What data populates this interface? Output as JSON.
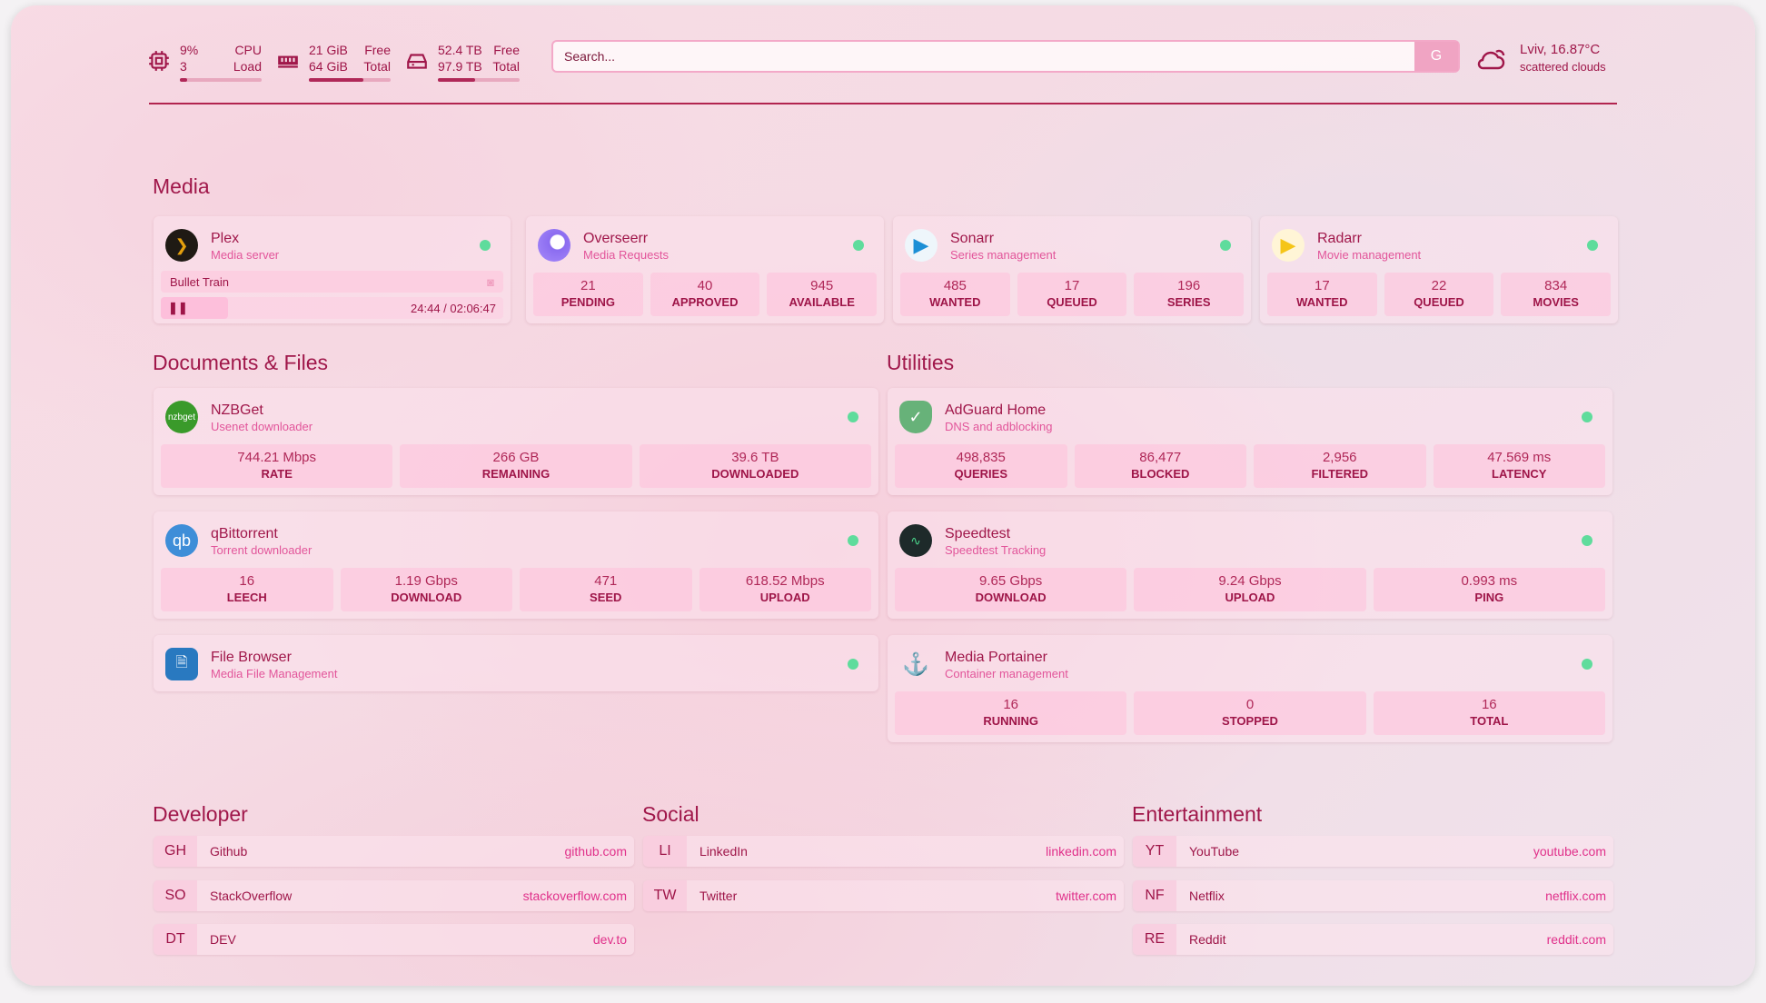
{
  "resources": {
    "cpu": {
      "icon": "cpu-icon",
      "value": "9%",
      "label": "CPU",
      "sub_value": "3",
      "sub_label": "Load",
      "percent": 9
    },
    "memory": {
      "icon": "memory-icon",
      "value": "21 GiB",
      "label": "Free",
      "sub_value": "64 GiB",
      "sub_label": "Total",
      "percent": 67
    },
    "disk": {
      "icon": "disk-icon",
      "value": "52.4 TB",
      "label": "Free",
      "sub_value": "97.9 TB",
      "sub_label": "Total",
      "percent": 46
    }
  },
  "search": {
    "placeholder": "Search...",
    "provider_label": "G"
  },
  "weather": {
    "icon": "cloud-sun-icon",
    "location_temp": "Lviv, 16.87°C",
    "condition": "scattered clouds"
  },
  "colors": {
    "accent": "#a0174a",
    "subtitle": "#e2559a",
    "status_ok": "#5fdc9c"
  },
  "sections": {
    "media": "Media",
    "documents": "Documents & Files",
    "utilities": "Utilities",
    "developer": "Developer",
    "social": "Social",
    "entertainment": "Entertainment"
  },
  "media": [
    {
      "name": "Plex",
      "desc": "Media server",
      "now_playing": "Bullet Train",
      "progress": "24:44 / 02:06:47",
      "progress_fraction": 0.195
    },
    {
      "name": "Overseerr",
      "desc": "Media Requests",
      "stats": [
        {
          "v": "21",
          "l": "PENDING"
        },
        {
          "v": "40",
          "l": "APPROVED"
        },
        {
          "v": "945",
          "l": "AVAILABLE"
        }
      ]
    },
    {
      "name": "Sonarr",
      "desc": "Series management",
      "stats": [
        {
          "v": "485",
          "l": "WANTED"
        },
        {
          "v": "17",
          "l": "QUEUED"
        },
        {
          "v": "196",
          "l": "SERIES"
        }
      ]
    },
    {
      "name": "Radarr",
      "desc": "Movie management",
      "stats": [
        {
          "v": "17",
          "l": "WANTED"
        },
        {
          "v": "22",
          "l": "QUEUED"
        },
        {
          "v": "834",
          "l": "MOVIES"
        }
      ]
    }
  ],
  "documents": [
    {
      "name": "NZBGet",
      "desc": "Usenet downloader",
      "logo_text": "nzbget",
      "stats": [
        {
          "v": "744.21 Mbps",
          "l": "RATE"
        },
        {
          "v": "266 GB",
          "l": "REMAINING"
        },
        {
          "v": "39.6 TB",
          "l": "DOWNLOADED"
        }
      ]
    },
    {
      "name": "qBittorrent",
      "desc": "Torrent downloader",
      "logo_text": "qb",
      "stats": [
        {
          "v": "16",
          "l": "LEECH"
        },
        {
          "v": "1.19 Gbps",
          "l": "DOWNLOAD"
        },
        {
          "v": "471",
          "l": "SEED"
        },
        {
          "v": "618.52 Mbps",
          "l": "UPLOAD"
        }
      ]
    },
    {
      "name": "File Browser",
      "desc": "Media File Management"
    }
  ],
  "utilities": [
    {
      "name": "AdGuard Home",
      "desc": "DNS and adblocking",
      "stats": [
        {
          "v": "498,835",
          "l": "QUERIES"
        },
        {
          "v": "86,477",
          "l": "BLOCKED"
        },
        {
          "v": "2,956",
          "l": "FILTERED"
        },
        {
          "v": "47.569 ms",
          "l": "LATENCY"
        }
      ]
    },
    {
      "name": "Speedtest",
      "desc": "Speedtest Tracking",
      "stats": [
        {
          "v": "9.65 Gbps",
          "l": "DOWNLOAD"
        },
        {
          "v": "9.24 Gbps",
          "l": "UPLOAD"
        },
        {
          "v": "0.993 ms",
          "l": "PING"
        }
      ]
    },
    {
      "name": "Media Portainer",
      "desc": "Container management",
      "stats": [
        {
          "v": "16",
          "l": "RUNNING"
        },
        {
          "v": "0",
          "l": "STOPPED"
        },
        {
          "v": "16",
          "l": "TOTAL"
        }
      ]
    }
  ],
  "bookmarks": {
    "developer": [
      {
        "abbr": "GH",
        "name": "Github",
        "url": "github.com"
      },
      {
        "abbr": "SO",
        "name": "StackOverflow",
        "url": "stackoverflow.com"
      },
      {
        "abbr": "DT",
        "name": "DEV",
        "url": "dev.to"
      }
    ],
    "social": [
      {
        "abbr": "LI",
        "name": "LinkedIn",
        "url": "linkedin.com"
      },
      {
        "abbr": "TW",
        "name": "Twitter",
        "url": "twitter.com"
      }
    ],
    "entertainment": [
      {
        "abbr": "YT",
        "name": "YouTube",
        "url": "youtube.com"
      },
      {
        "abbr": "NF",
        "name": "Netflix",
        "url": "netflix.com"
      },
      {
        "abbr": "RE",
        "name": "Reddit",
        "url": "reddit.com"
      }
    ]
  }
}
